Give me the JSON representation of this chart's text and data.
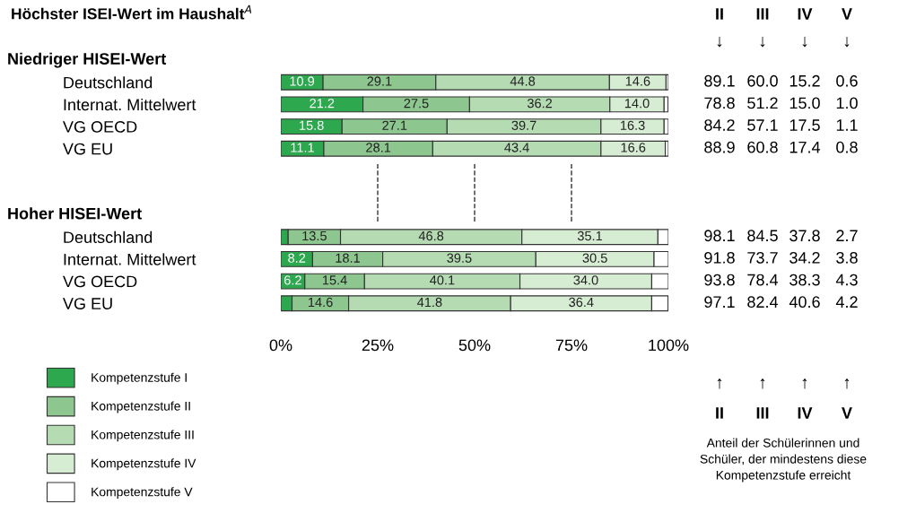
{
  "chart_data": {
    "type": "bar",
    "orientation": "horizontal",
    "stacked": true,
    "title": "Höchster ISEI-Wert im Haushalt$^{A}$",
    "categories": [
      "Deutschland",
      "Internat. Mittelwert",
      "VG OECD",
      "VG EU",
      null,
      null,
      null,
      "Deutschland",
      "Internat. Mittelwert",
      "VG OECD",
      "VG EU"
    ],
    "series": [
      {
        "name": "Kompetenzstufe I",
        "color": "#2ea84f",
        "values": [
          10.9,
          21.2,
          15.8,
          11.1,
          null,
          null,
          null,
          1.9,
          8.2,
          6.2,
          2.9
        ],
        "value_labels": [
          "10.9",
          "21.2",
          "15.8",
          "11.1",
          null,
          null,
          null,
          null,
          "8.2",
          "6.2",
          null
        ]
      },
      {
        "name": "Kompetenzstufe II",
        "color": "#8dc78f",
        "values": [
          29.1,
          27.5,
          27.1,
          28.1,
          null,
          null,
          null,
          13.5,
          18.1,
          15.4,
          14.6
        ],
        "value_labels": [
          "29.1",
          "27.5",
          "27.1",
          "28.1",
          null,
          null,
          null,
          "13.5",
          "18.1",
          "15.4",
          "14.6"
        ]
      },
      {
        "name": "Kompetenzstufe III",
        "color": "#b5dbb3",
        "values": [
          44.8,
          36.2,
          39.7,
          43.4,
          null,
          null,
          null,
          46.8,
          39.5,
          40.1,
          41.8
        ],
        "value_labels": [
          "44.8",
          "36.2",
          "39.7",
          "43.4",
          null,
          null,
          null,
          "46.8",
          "39.5",
          "40.1",
          "41.8"
        ]
      },
      {
        "name": "Kompetenzstufe IV",
        "color": "#d6ecd3",
        "values": [
          14.6,
          14.0,
          16.3,
          16.6,
          null,
          null,
          null,
          35.1,
          30.5,
          34.0,
          36.4
        ],
        "value_labels": [
          "14.6",
          "14.0",
          "16.3",
          "16.6",
          null,
          null,
          null,
          "35.1",
          "30.5",
          "34.0",
          "36.4"
        ]
      },
      {
        "name": "Kompetenzstufe V",
        "color": "#ffffff",
        "values": [
          0.6,
          1.0,
          1.1,
          0.8,
          null,
          null,
          null,
          2.7,
          3.7,
          4.3,
          4.2
        ]
      }
    ],
    "xlim": [
      0,
      100
    ],
    "xticks": [
      {
        "value": 0,
        "label": "0%"
      },
      {
        "value": 25,
        "label": "25%"
      },
      {
        "value": 50,
        "label": "50%"
      },
      {
        "value": 75,
        "label": "75%"
      },
      {
        "value": 100,
        "label": "100%"
      }
    ],
    "ref_lines": [
      {
        "axis": "x",
        "value": 25,
        "line_style": "dashed"
      },
      {
        "axis": "x",
        "value": 50,
        "line_style": "dashed"
      },
      {
        "axis": "x",
        "value": 75,
        "line_style": "dashed"
      }
    ],
    "legend": "bottom left",
    "grid": false,
    "annotations": [
      "Niedriger HISEI-Wert",
      "Hoher HISEI-Wert",
      "II",
      "III",
      "IV",
      "V",
      "↓",
      "↑",
      "89.1",
      "60.0",
      "15.2",
      "0.6",
      "78.8",
      "51.2",
      "15.0",
      "1.0",
      "84.2",
      "57.1",
      "17.5",
      "1.1",
      "88.9",
      "60.8",
      "17.4",
      "0.8",
      "98.1",
      "84.5",
      "37.8",
      "2.7",
      "91.8",
      "73.7",
      "34.2",
      "3.8",
      "93.8",
      "78.4",
      "38.3",
      "4.3",
      "97.1",
      "82.4",
      "40.6",
      "4.2",
      "Anteil der Schülerinnen und\nSchüler, der mindestens diese\nKompetenzstufe erreicht"
    ]
  }
}
